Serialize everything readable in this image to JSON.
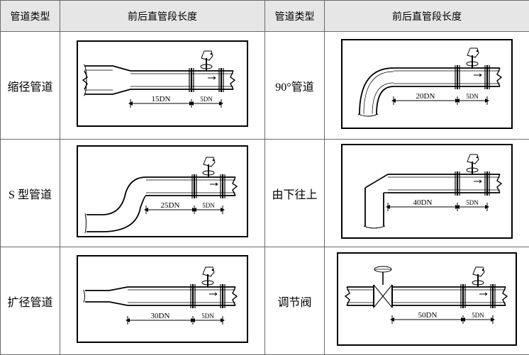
{
  "headers": {
    "type": "管道类型",
    "length": "前后直管段长度"
  },
  "rows": [
    [
      {
        "label": "缩径管道",
        "kind": "reducer",
        "upstream": "15DN",
        "downstream": "5DN"
      },
      {
        "label": "90°管道",
        "kind": "bend90",
        "upstream": "20DN",
        "downstream": "5DN"
      }
    ],
    [
      {
        "label": "S 型管道",
        "kind": "sbend",
        "upstream": "25DN",
        "downstream": "5DN"
      },
      {
        "label": "由下往上",
        "kind": "vertup",
        "upstream": "40DN",
        "downstream": "5DN"
      }
    ],
    [
      {
        "label": "扩径管道",
        "kind": "expander",
        "upstream": "30DN",
        "downstream": "5DN"
      },
      {
        "label": "调节阀",
        "kind": "valve",
        "upstream": "50DN",
        "downstream": "5DN"
      }
    ]
  ],
  "diagram_style": {
    "stroke": "#000000",
    "stroke_width": 1.6,
    "background": "#ffffff",
    "font": "serif",
    "dim_font_size": 11,
    "pipe_outer_h": 30,
    "pipe_inner_h": 22,
    "sensor_head": {
      "shape": "poly5",
      "color": "#000"
    }
  }
}
